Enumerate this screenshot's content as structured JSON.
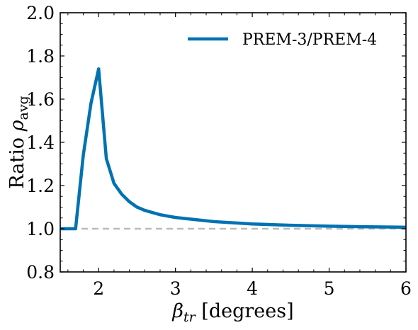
{
  "chart_data": {
    "type": "line",
    "xlabel": "β_tr [degrees]",
    "ylabel": "Ratio ρ_avg",
    "xlim": [
      1.5,
      6.0
    ],
    "ylim": [
      0.8,
      2.0
    ],
    "xticks": [
      2,
      3,
      4,
      5,
      6
    ],
    "xtick_labels": [
      "2",
      "3",
      "4",
      "5",
      "6"
    ],
    "yticks": [
      0.8,
      1.0,
      1.2,
      1.4,
      1.6,
      1.8,
      2.0
    ],
    "ytick_labels": [
      "0.8",
      "1.0",
      "1.2",
      "1.4",
      "1.6",
      "1.8",
      "2.0"
    ],
    "grid": false,
    "legend_position": "top-right",
    "reference_line": {
      "y": 1.0,
      "style": "dashed",
      "color": "#bbbbbb"
    },
    "series": [
      {
        "name": "PREM-3/PREM-4",
        "color": "#0072b2",
        "x": [
          1.5,
          1.7,
          1.8,
          1.9,
          2.0,
          2.1,
          2.2,
          2.3,
          2.4,
          2.5,
          2.6,
          2.8,
          3.0,
          3.5,
          4.0,
          4.5,
          5.0,
          5.5,
          6.0
        ],
        "y": [
          1.0,
          1.0,
          1.34,
          1.58,
          1.74,
          1.325,
          1.21,
          1.16,
          1.125,
          1.1,
          1.085,
          1.065,
          1.052,
          1.033,
          1.022,
          1.016,
          1.012,
          1.009,
          1.007
        ]
      }
    ]
  }
}
